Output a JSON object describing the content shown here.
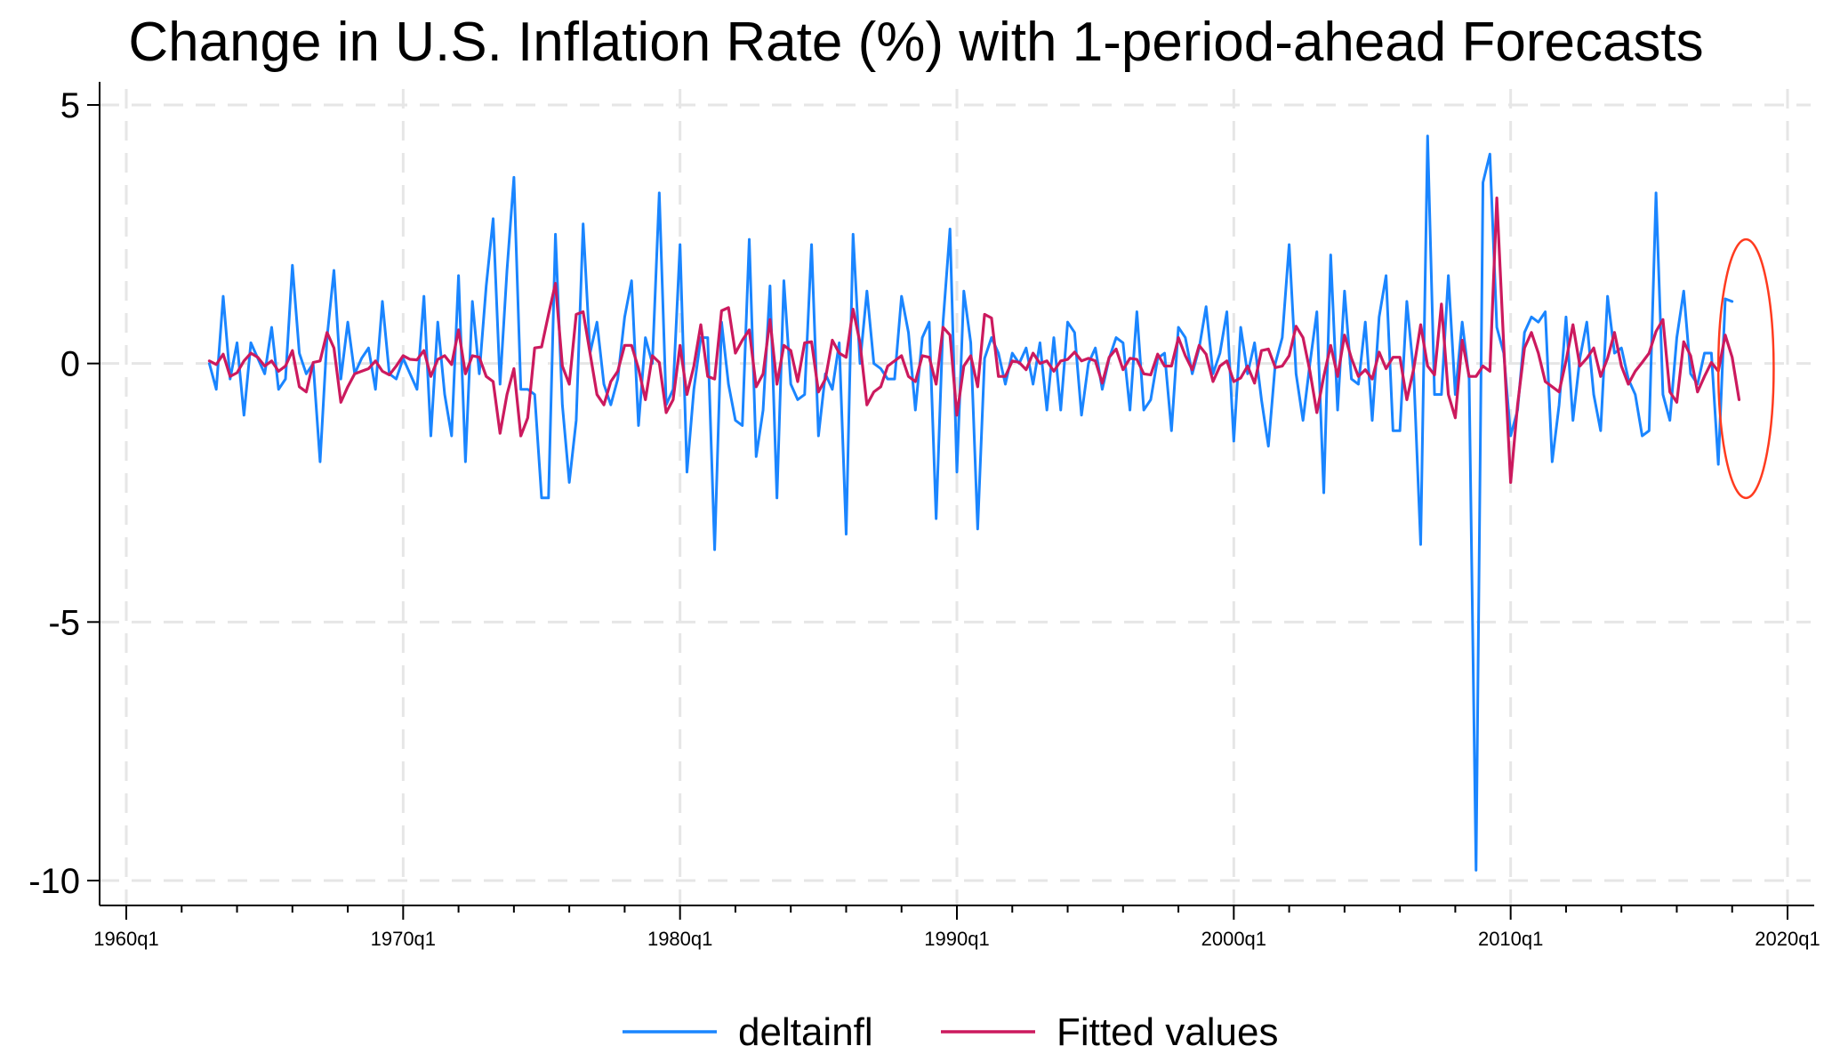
{
  "chart_data": {
    "type": "line",
    "title": "Change in U.S. Inflation Rate (%) with 1-period-ahead Forecasts",
    "xlabel": "",
    "ylabel": "",
    "x_ticks": [
      "1960q1",
      "1970q1",
      "1980q1",
      "1990q1",
      "2000q1",
      "2010q1",
      "2020q1"
    ],
    "x_tick_values": [
      1960,
      1970,
      1980,
      1990,
      2000,
      2010,
      2020
    ],
    "y_ticks": [
      5,
      0,
      -5,
      -10
    ],
    "xlim": [
      1960,
      2020
    ],
    "ylim": [
      -10,
      5
    ],
    "grid": true,
    "legend_position": "bottom",
    "x_start": "1963q1",
    "series": [
      {
        "name": "deltainfl",
        "color": "#1a85ff",
        "values": [
          0,
          -0.5,
          1.3,
          -0.3,
          0.4,
          -1,
          0.4,
          0.1,
          -0.2,
          0.7,
          -0.5,
          -0.3,
          1.9,
          0.2,
          -0.2,
          0,
          -1.9,
          0.5,
          1.8,
          -0.3,
          0.8,
          -0.2,
          0.1,
          0.3,
          -0.5,
          1.2,
          -0.2,
          -0.3,
          0.1,
          -0.2,
          -0.5,
          1.3,
          -1.4,
          0.8,
          -0.6,
          -1.4,
          1.7,
          -1.9,
          1.2,
          -0.2,
          1.5,
          2.8,
          -0.4,
          1.8,
          3.6,
          -0.5,
          -0.5,
          -0.6,
          -2.6,
          -2.6,
          2.5,
          -0.8,
          -2.3,
          -1.1,
          2.7,
          0.2,
          0.8,
          -0.4,
          -0.8,
          -0.3,
          0.9,
          1.6,
          -1.2,
          0.5,
          0,
          3.3,
          -0.8,
          -0.5,
          2.3,
          -2.1,
          -0.5,
          0.5,
          0.5,
          -3.6,
          0.8,
          -0.4,
          -1.1,
          -1.2,
          2.4,
          -1.8,
          -0.9,
          1.5,
          -2.6,
          1.6,
          -0.4,
          -0.7,
          -0.6,
          2.3,
          -1.4,
          -0.2,
          -0.5,
          0.4,
          -3.3,
          2.5,
          0,
          1.4,
          0,
          -0.1,
          -0.3,
          -0.3,
          1.3,
          0.6,
          -0.9,
          0.5,
          0.8,
          -3,
          0.8,
          2.6,
          -2.1,
          1.4,
          0.4,
          -3.2,
          0.1,
          0.5,
          0.2,
          -0.4,
          0.2,
          0,
          0.3,
          -0.4,
          0.4,
          -0.9,
          0.5,
          -0.9,
          0.8,
          0.6,
          -1,
          0,
          0.3,
          -0.5,
          0.1,
          0.5,
          0.4,
          -0.9,
          1,
          -0.9,
          -0.7,
          0.1,
          0.2,
          -1.3,
          0.7,
          0.5,
          -0.2,
          0.3,
          1.1,
          -0.2,
          0.2,
          1,
          -1.5,
          0.7,
          -0.2,
          0.4,
          -0.7,
          -1.6,
          0,
          0.5,
          2.3,
          -0.2,
          -1.1,
          0,
          1,
          -2.5,
          2.1,
          -0.9,
          1.4,
          -0.3,
          -0.4,
          0.8,
          -1.1,
          0.9,
          1.7,
          -1.3,
          -1.3,
          1.2,
          -0.2,
          -3.5,
          4.4,
          -0.6,
          -0.6,
          1.7,
          -0.6,
          0.8,
          -0.3,
          -9.8,
          3.5,
          4.05,
          0.7,
          0.2,
          -1.4,
          -0.9,
          0.6,
          0.9,
          0.8,
          1,
          -1.9,
          -0.8,
          0.9,
          -1.1,
          0.1,
          0.8,
          -0.6,
          -1.3,
          1.3,
          0.2,
          0.3,
          -0.3,
          -0.6,
          -1.4,
          -1.3,
          3.3,
          -0.6,
          -1.1,
          0.5,
          1.4,
          -0.2,
          -0.4,
          0.2,
          0.2,
          -1.95,
          1.25,
          1.2
        ]
      },
      {
        "name": "Fitted values",
        "color": "#cc1a5e",
        "values": [
          0.05,
          -0.02,
          0.18,
          -0.25,
          -0.18,
          0.05,
          0.2,
          0.12,
          -0.05,
          0.05,
          -0.15,
          -0.05,
          0.25,
          -0.45,
          -0.55,
          0.02,
          0.05,
          0.6,
          0.3,
          -0.75,
          -0.45,
          -0.2,
          -0.15,
          -0.1,
          0.05,
          -0.15,
          -0.22,
          -0.05,
          0.15,
          0.08,
          0.07,
          0.25,
          -0.25,
          0.08,
          0.15,
          -0.02,
          0.65,
          -0.2,
          0.15,
          0.12,
          -0.25,
          -0.35,
          -1.35,
          -0.6,
          -0.1,
          -1.4,
          -1.05,
          0.3,
          0.32,
          0.95,
          1.55,
          -0.05,
          -0.4,
          0.95,
          1,
          0.2,
          -0.6,
          -0.8,
          -0.35,
          -0.15,
          0.35,
          0.35,
          -0.1,
          -0.7,
          0.15,
          0.02,
          -0.95,
          -0.7,
          0.35,
          -0.6,
          -0.05,
          0.75,
          -0.25,
          -0.3,
          1.02,
          1.08,
          0.2,
          0.45,
          0.65,
          -0.45,
          -0.2,
          0.85,
          -0.4,
          0.35,
          0.25,
          -0.35,
          0.4,
          0.42,
          -0.55,
          -0.3,
          0.45,
          0.2,
          0.12,
          1.05,
          0.4,
          -0.8,
          -0.55,
          -0.45,
          -0.05,
          0.05,
          0.15,
          -0.25,
          -0.35,
          0.15,
          0.12,
          -0.4,
          0.7,
          0.55,
          -1,
          -0.05,
          0.15,
          -0.45,
          0.95,
          0.88,
          -0.25,
          -0.25,
          0.05,
          0.02,
          -0.12,
          0.2,
          0,
          0.05,
          -0.15,
          0.05,
          0.08,
          0.22,
          0.05,
          0.1,
          0.05,
          -0.38,
          0.12,
          0.28,
          -0.12,
          0.1,
          0.08,
          -0.2,
          -0.22,
          0.18,
          -0.05,
          -0.05,
          0.5,
          0.15,
          -0.12,
          0.35,
          0.18,
          -0.35,
          -0.05,
          0.05,
          -0.35,
          -0.28,
          -0.05,
          -0.38,
          0.25,
          0.28,
          -0.08,
          -0.05,
          0.15,
          0.72,
          0.5,
          -0.15,
          -0.95,
          -0.25,
          0.35,
          -0.25,
          0.55,
          0.1,
          -0.25,
          -0.12,
          -0.3,
          0.22,
          -0.1,
          0.12,
          0.12,
          -0.7,
          -0.1,
          0.75,
          -0.05,
          -0.22,
          1.15,
          -0.6,
          -1.05,
          0.45,
          -0.25,
          -0.25,
          -0.05,
          -0.15,
          3.2,
          0.35,
          -2.3,
          -0.8,
          0.3,
          0.6,
          0.2,
          -0.35,
          -0.45,
          -0.55,
          0.05,
          0.75,
          -0.05,
          0.1,
          0.3,
          -0.25,
          0.1,
          0.6,
          -0.05,
          -0.4,
          -0.15,
          0.02,
          0.2,
          0.62,
          0.85,
          -0.55,
          -0.75,
          0.42,
          0.15,
          -0.55,
          -0.25,
          0.02,
          -0.15,
          0.55,
          0.12,
          -0.7
        ]
      }
    ]
  },
  "legend": {
    "items": [
      {
        "label": "deltainfl",
        "color": "#1a85ff"
      },
      {
        "label": "Fitted values",
        "color": "#cc1a5e"
      }
    ]
  },
  "annotation": {
    "shape": "ellipse",
    "color": "#ff3b1f",
    "x_range": [
      2017.5,
      2019.5
    ],
    "y_range": [
      -2.6,
      2.4
    ]
  }
}
